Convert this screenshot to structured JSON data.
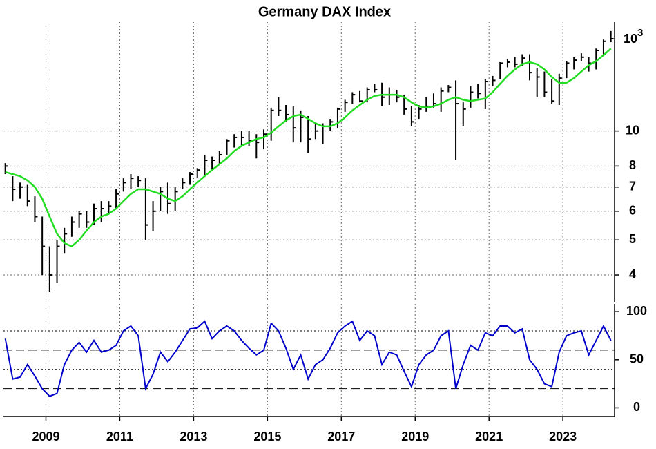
{
  "chart_data": [
    {
      "type": "ohlc",
      "title": "Germany DAX Index",
      "color": "#000000",
      "log_scale": true,
      "grid": true,
      "x": [
        2007.9,
        2008.1,
        2008.3,
        2008.5,
        2008.7,
        2008.9,
        2009.1,
        2009.3,
        2009.5,
        2009.7,
        2009.9,
        2010.1,
        2010.3,
        2010.5,
        2010.7,
        2010.9,
        2011.1,
        2011.3,
        2011.5,
        2011.7,
        2011.9,
        2012.1,
        2012.3,
        2012.5,
        2012.7,
        2012.9,
        2013.1,
        2013.3,
        2013.5,
        2013.7,
        2013.9,
        2014.1,
        2014.3,
        2014.5,
        2014.7,
        2014.9,
        2015.1,
        2015.3,
        2015.5,
        2015.7,
        2015.9,
        2016.1,
        2016.3,
        2016.5,
        2016.7,
        2016.9,
        2017.1,
        2017.3,
        2017.5,
        2017.7,
        2017.9,
        2018.1,
        2018.3,
        2018.5,
        2018.7,
        2018.9,
        2019.1,
        2019.3,
        2019.5,
        2019.7,
        2019.9,
        2020.1,
        2020.3,
        2020.5,
        2020.7,
        2020.9,
        2021.1,
        2021.3,
        2021.5,
        2021.7,
        2021.9,
        2022.1,
        2022.3,
        2022.5,
        2022.7,
        2022.9,
        2023.1,
        2023.3,
        2023.5,
        2023.7,
        2023.9,
        2024.1,
        2024.3
      ],
      "high": [
        8.15,
        7.5,
        7.2,
        7.1,
        6.6,
        5.8,
        4.8,
        5.0,
        5.4,
        5.8,
        6.0,
        6.0,
        6.3,
        6.4,
        6.4,
        6.9,
        7.4,
        7.6,
        7.5,
        7.4,
        6.4,
        7.0,
        7.2,
        7.0,
        7.4,
        7.7,
        7.9,
        8.6,
        8.5,
        8.8,
        9.5,
        9.8,
        10.0,
        10.0,
        9.8,
        10.1,
        11.6,
        12.4,
        11.8,
        11.7,
        11.4,
        11.0,
        10.5,
        10.5,
        10.8,
        11.6,
        12.2,
        12.8,
        12.9,
        13.2,
        13.5,
        13.6,
        13.2,
        13.0,
        12.6,
        11.7,
        11.8,
        12.4,
        12.7,
        13.2,
        13.4,
        13.8,
        12.0,
        13.3,
        13.5,
        13.9,
        14.2,
        15.5,
        15.8,
        16.0,
        16.3,
        16.3,
        14.9,
        14.6,
        13.9,
        14.4,
        15.6,
        16.0,
        16.4,
        16.0,
        16.9,
        17.9,
        18.9
      ],
      "low": [
        7.6,
        6.4,
        6.5,
        6.2,
        5.6,
        4.0,
        3.6,
        3.8,
        4.6,
        5.1,
        5.4,
        5.4,
        5.5,
        5.6,
        5.9,
        6.1,
        6.8,
        6.9,
        7.0,
        5.0,
        5.3,
        6.0,
        5.9,
        6.0,
        6.9,
        7.1,
        7.4,
        7.5,
        7.8,
        8.1,
        8.6,
        9.0,
        9.1,
        9.1,
        8.4,
        8.9,
        9.4,
        11.0,
        10.6,
        9.3,
        9.3,
        8.7,
        9.5,
        9.2,
        10.0,
        10.2,
        11.3,
        11.9,
        12.0,
        12.0,
        12.8,
        11.7,
        11.8,
        12.0,
        11.1,
        10.3,
        10.8,
        11.3,
        11.6,
        11.3,
        12.8,
        8.3,
        10.3,
        11.6,
        12.3,
        11.5,
        13.3,
        13.9,
        15.0,
        15.0,
        15.1,
        13.8,
        12.4,
        12.4,
        11.9,
        11.8,
        14.0,
        14.8,
        15.6,
        14.6,
        14.8,
        16.3,
        17.6
      ],
      "close": [
        8.0,
        6.9,
        7.0,
        6.4,
        5.8,
        4.8,
        4.0,
        4.8,
        5.2,
        5.6,
        5.9,
        5.6,
        6.1,
        6.1,
        6.2,
        6.7,
        7.2,
        7.4,
        7.3,
        5.5,
        6.0,
        6.8,
        6.3,
        6.8,
        7.2,
        7.6,
        7.8,
        8.3,
        8.3,
        8.6,
        9.4,
        9.6,
        9.6,
        9.4,
        9.3,
        9.8,
        11.4,
        11.4,
        11.1,
        10.2,
        10.9,
        9.5,
        10.0,
        10.3,
        10.6,
        11.5,
        12.0,
        12.6,
        12.1,
        13.0,
        13.0,
        12.4,
        12.6,
        12.4,
        11.5,
        10.6,
        11.5,
        11.7,
        11.9,
        12.9,
        13.2,
        11.9,
        11.5,
        12.8,
        12.7,
        13.7,
        13.8,
        15.4,
        15.5,
        15.3,
        15.9,
        14.5,
        14.1,
        12.8,
        12.1,
        14.0,
        15.4,
        15.7,
        16.0,
        15.4,
        16.7,
        17.7,
        18.0
      ],
      "overlay": {
        "type": "line",
        "color": "#22dd22",
        "values": [
          7.7,
          7.6,
          7.5,
          7.3,
          7.0,
          6.5,
          5.8,
          5.2,
          4.9,
          4.8,
          5.0,
          5.3,
          5.6,
          5.8,
          5.9,
          6.1,
          6.4,
          6.7,
          6.9,
          6.9,
          6.8,
          6.7,
          6.5,
          6.4,
          6.6,
          6.9,
          7.2,
          7.5,
          7.8,
          8.1,
          8.4,
          8.8,
          9.1,
          9.3,
          9.5,
          9.6,
          9.9,
          10.3,
          10.7,
          11.0,
          11.1,
          10.8,
          10.5,
          10.3,
          10.3,
          10.5,
          10.9,
          11.4,
          11.8,
          12.2,
          12.5,
          12.6,
          12.6,
          12.6,
          12.4,
          12.0,
          11.7,
          11.6,
          11.7,
          11.9,
          12.2,
          12.4,
          12.2,
          12.1,
          12.2,
          12.3,
          12.8,
          13.5,
          14.2,
          14.8,
          15.3,
          15.5,
          15.3,
          14.8,
          14.1,
          13.6,
          13.6,
          14.0,
          14.6,
          15.2,
          15.6,
          16.2,
          16.9
        ]
      },
      "xlim": [
        2007.85,
        2024.4
      ],
      "ylim": [
        3.37,
        20
      ],
      "yticks": [
        4,
        5,
        6,
        7,
        8,
        10
      ],
      "y_multiplier": {
        "base": "10",
        "exponent": "3"
      }
    },
    {
      "type": "line",
      "color": "#0000cc",
      "grid": true,
      "values": [
        72,
        30,
        32,
        45,
        33,
        20,
        12,
        15,
        45,
        60,
        68,
        58,
        70,
        58,
        60,
        65,
        80,
        85,
        75,
        20,
        35,
        58,
        48,
        58,
        70,
        82,
        83,
        90,
        72,
        80,
        85,
        80,
        70,
        62,
        55,
        60,
        88,
        80,
        62,
        40,
        55,
        30,
        45,
        50,
        62,
        78,
        85,
        90,
        70,
        80,
        75,
        45,
        58,
        55,
        38,
        22,
        45,
        55,
        60,
        75,
        80,
        20,
        45,
        65,
        60,
        78,
        75,
        85,
        85,
        78,
        82,
        50,
        40,
        25,
        22,
        58,
        75,
        78,
        80,
        55,
        70,
        85,
        70
      ],
      "xlim": [
        2007.85,
        2024.4
      ],
      "ylim": [
        -9,
        108
      ],
      "xticks": [
        2009,
        2011,
        2013,
        2015,
        2017,
        2019,
        2021,
        2023
      ],
      "yticks": [
        0,
        50,
        100
      ],
      "reference_lines": {
        "dotted": [
          40,
          80
        ],
        "dashed": [
          20,
          60
        ]
      }
    }
  ]
}
